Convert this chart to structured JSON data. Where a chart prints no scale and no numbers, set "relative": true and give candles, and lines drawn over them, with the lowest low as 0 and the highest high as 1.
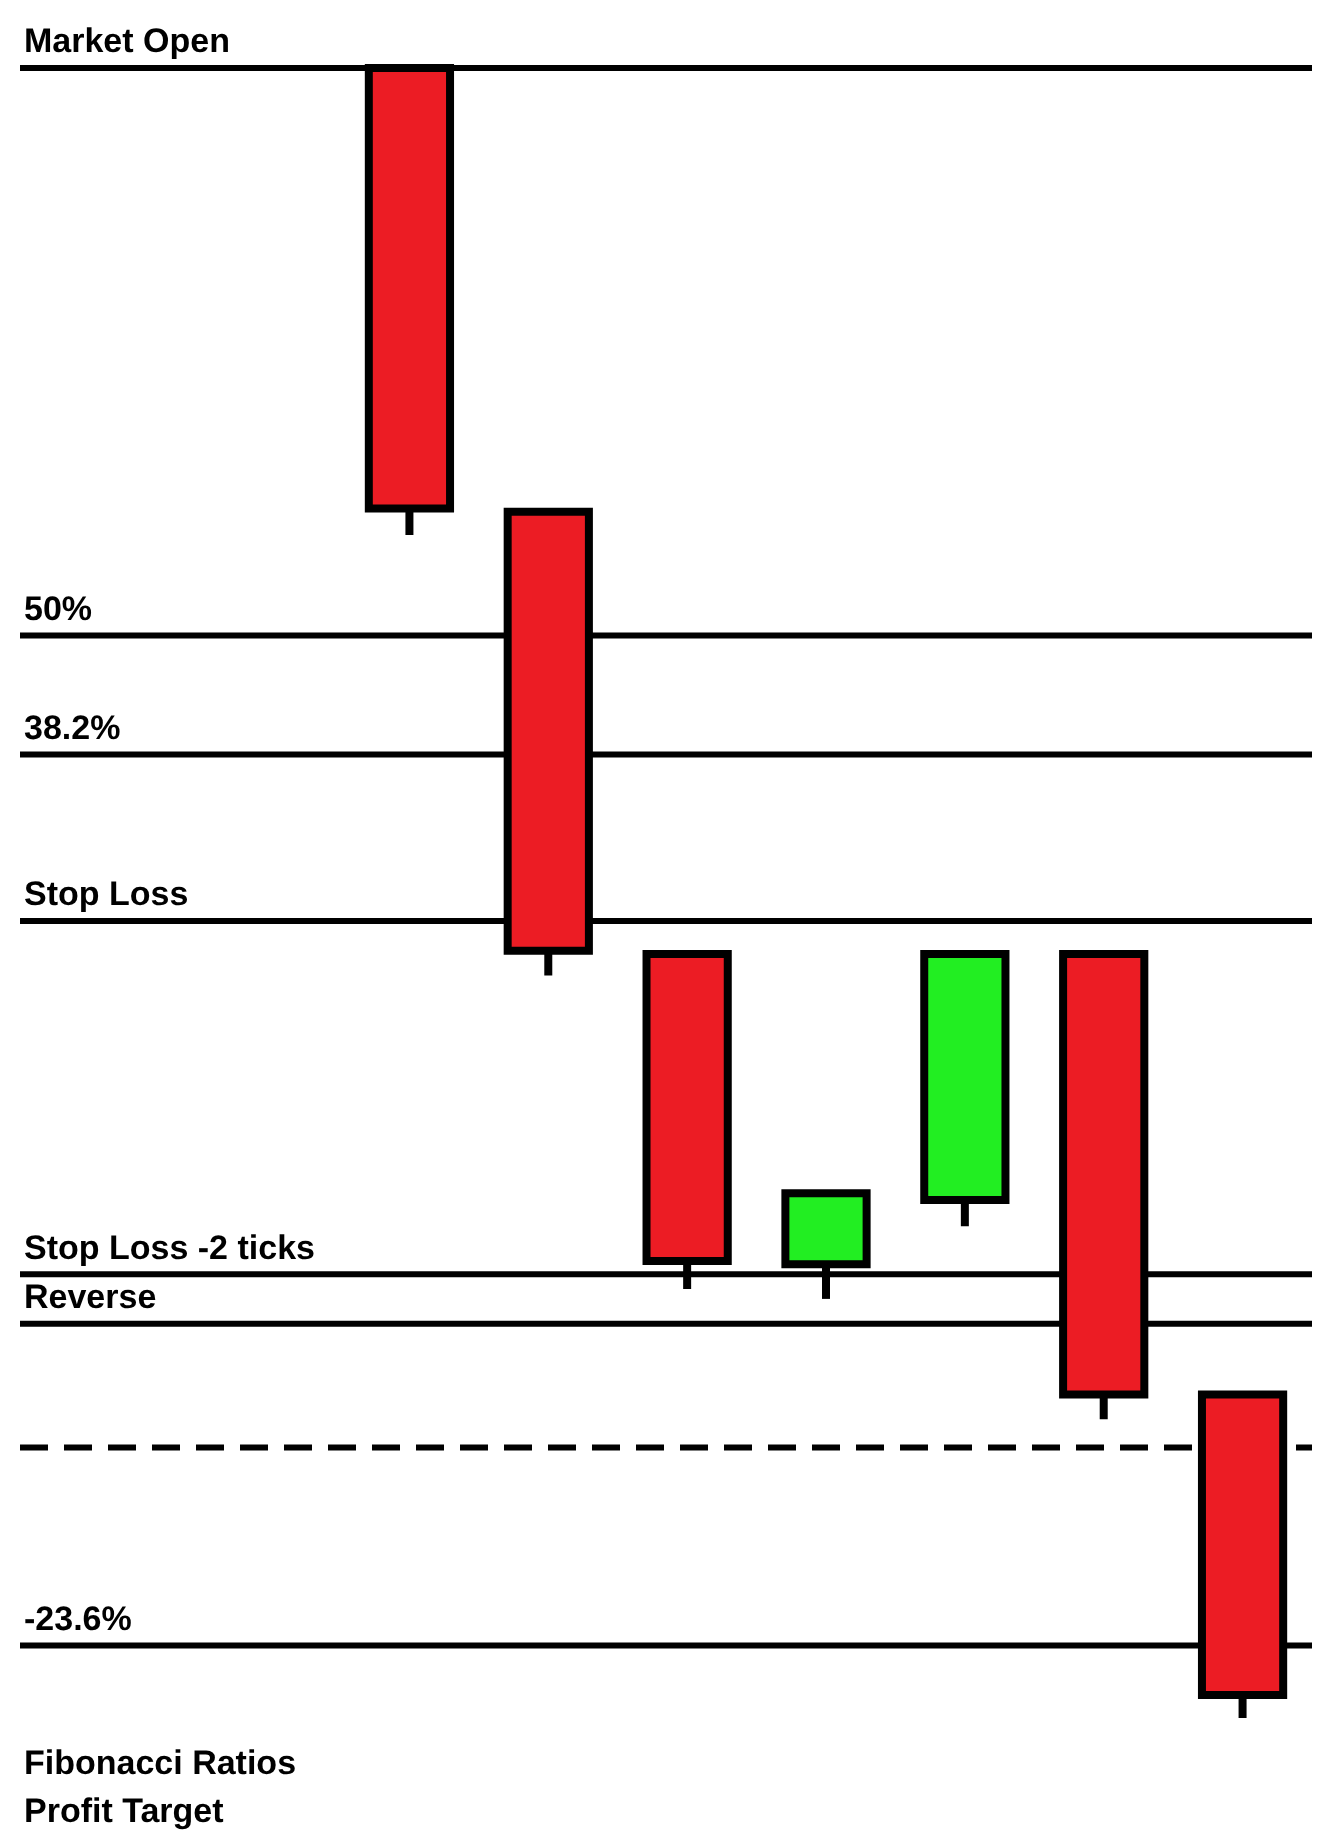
{
  "chart_data": {
    "type": "candlestick",
    "relative": true,
    "categories": [
      null,
      null,
      null,
      null,
      null,
      null,
      null
    ],
    "ohlc": [
      [
        1,
        1,
        0.717,
        0.733
      ],
      [
        0.731,
        0.731,
        0.45,
        0.465
      ],
      [
        0.463,
        0.463,
        0.26,
        0.277
      ],
      [
        0.275,
        0.318,
        0.254,
        0.318
      ],
      [
        0.314,
        0.463,
        0.298,
        0.463
      ],
      [
        0.463,
        0.463,
        0.181,
        0.196
      ],
      [
        0.196,
        0.196,
        0,
        0.014
      ]
    ],
    "colors": [
      "#ec1c24",
      "#ec1c24",
      "#ec1c24",
      "#22ee22",
      "#22ee22",
      "#ec1c24",
      "#ec1c24"
    ],
    "ref_lines": [
      {
        "axis": "y",
        "value": 1,
        "label": "Market Open"
      },
      {
        "axis": "y",
        "value": 0.656
      },
      {
        "axis": "y",
        "value": 0.584
      },
      {
        "axis": "y",
        "value": 0.483,
        "label": "Stop Loss"
      },
      {
        "axis": "y",
        "value": 0.269,
        "label": "Stop Loss -2 ticks"
      },
      {
        "axis": "y",
        "value": 0.239,
        "label": "Reverse"
      },
      {
        "axis": "y",
        "value": 0.164,
        "line_style": "dashed"
      },
      {
        "axis": "y",
        "value": 0.044
      }
    ],
    "annotations": [
      {
        "text": "50%",
        "y": 0.656
      },
      {
        "text": "38.2%",
        "y": 0.584
      },
      {
        "text": "-23.6%",
        "y": 0.044
      },
      "Fibonacci Ratios",
      "Profit Target"
    ],
    "legend": false
  }
}
